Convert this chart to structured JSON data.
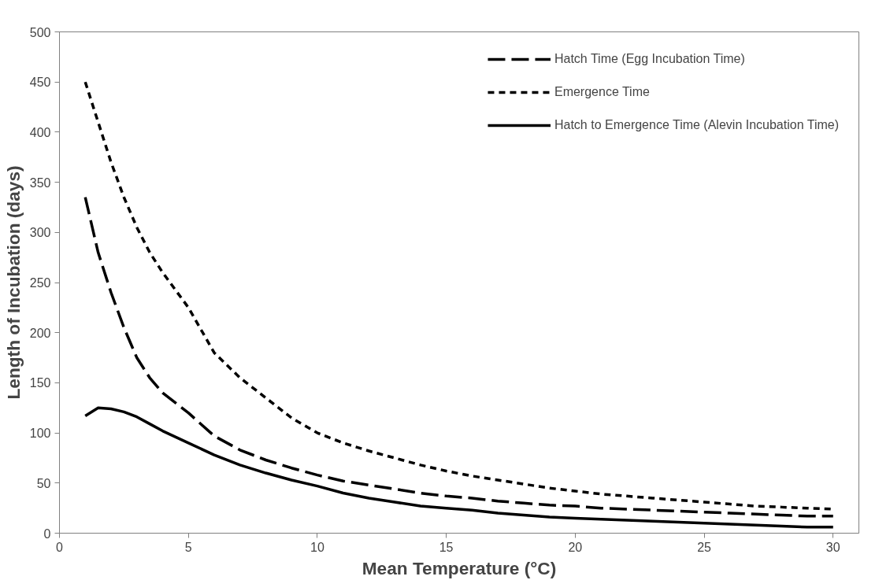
{
  "chart_data": {
    "type": "line",
    "xlabel": "Mean Temperature (°C)",
    "ylabel": "Length of Incubation (days)",
    "x": [
      1,
      1.5,
      2,
      2.5,
      3,
      3.5,
      4,
      5,
      6,
      7,
      8,
      9,
      10,
      11,
      12,
      13,
      14,
      15,
      16,
      17,
      18,
      19,
      20,
      21,
      22,
      23,
      24,
      25,
      26,
      27,
      28,
      29,
      30
    ],
    "series": [
      {
        "name": "Hatch Time (Egg Incubation Time)",
        "color": "#000000",
        "line_style": "dashed",
        "values": [
          335,
          280,
          240,
          205,
          175,
          155,
          140,
          120,
          97,
          83,
          73,
          65,
          58,
          52,
          48,
          44,
          40,
          37,
          35,
          32,
          30,
          28,
          27,
          25,
          24,
          23,
          22,
          21,
          20,
          19,
          18,
          17,
          17
        ]
      },
      {
        "name": "Emergence Time",
        "color": "#000000",
        "line_style": "dotted",
        "values": [
          450,
          410,
          370,
          335,
          305,
          280,
          260,
          225,
          180,
          155,
          135,
          115,
          100,
          90,
          82,
          75,
          68,
          62,
          57,
          53,
          49,
          45,
          42,
          39,
          37,
          35,
          33,
          31,
          29,
          27,
          26,
          25,
          24
        ]
      },
      {
        "name": "Hatch to Emergence Time (Alevin Incubation Time)",
        "color": "#000000",
        "line_style": "solid",
        "values": [
          117,
          125,
          124,
          121,
          116,
          109,
          102,
          90,
          78,
          68,
          60,
          53,
          47,
          40,
          35,
          31,
          27,
          25,
          23,
          20,
          18,
          16,
          15,
          14,
          13,
          12,
          11,
          10,
          9,
          8,
          7,
          6,
          6
        ]
      }
    ],
    "xlim": [
      0,
      31
    ],
    "xticks": [
      0,
      5,
      10,
      15,
      20,
      25,
      30
    ],
    "ylim": [
      0,
      500
    ],
    "yticks": [
      0,
      50,
      100,
      150,
      200,
      250,
      300,
      350,
      400,
      450,
      500
    ],
    "grid": false,
    "legend": "top right",
    "marker": "none"
  }
}
